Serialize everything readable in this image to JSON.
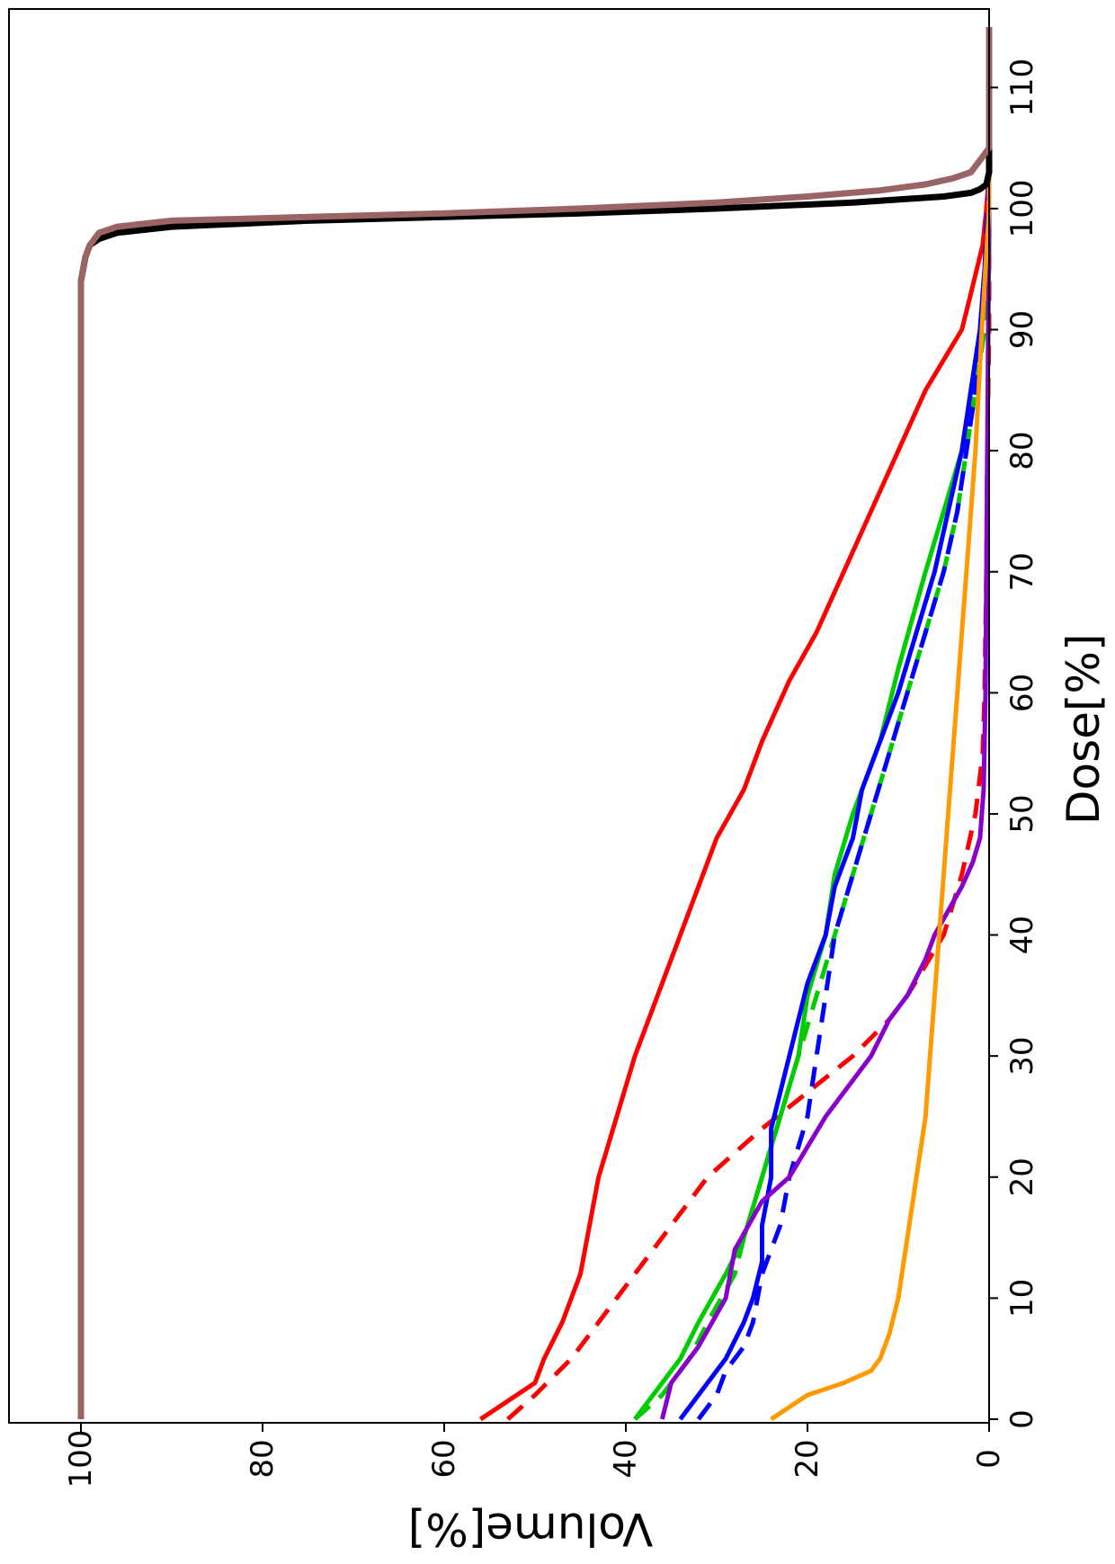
{
  "chart_data": {
    "type": "line",
    "orientation": "rotated-90-clockwise",
    "xlabel": "Dose[%]",
    "ylabel": "Volume[%]",
    "xlim": [
      0,
      115
    ],
    "ylim": [
      0,
      100
    ],
    "xticks": [
      0,
      10,
      20,
      30,
      40,
      50,
      60,
      70,
      80,
      90,
      100,
      110
    ],
    "yticks": [
      0,
      20,
      40,
      60,
      80,
      100
    ],
    "grid": false,
    "series": [
      {
        "color": "#ff0000",
        "dash": false,
        "x": [
          0,
          2,
          3,
          5,
          8,
          12,
          16,
          20,
          25,
          30,
          32,
          36,
          40,
          44,
          48,
          52,
          56,
          61,
          65,
          70,
          75,
          80,
          85,
          90,
          93,
          97,
          100,
          103,
          115
        ],
        "y": [
          56,
          52,
          50,
          49,
          47,
          45,
          44,
          43,
          41,
          39,
          38,
          36,
          34,
          32,
          30,
          27,
          25,
          22,
          19,
          16,
          13,
          10,
          7,
          3,
          2,
          0.7,
          0.3,
          0,
          0
        ]
      },
      {
        "color": "#ff0000",
        "dash": true,
        "x": [
          0,
          2,
          5,
          8,
          10,
          13,
          16,
          20,
          24,
          27,
          30,
          33,
          35,
          40,
          45,
          50,
          55,
          60,
          70,
          80,
          90,
          100,
          115
        ],
        "y": [
          53,
          50,
          46,
          43,
          41,
          38,
          35,
          31,
          25,
          20,
          15,
          11,
          9,
          5,
          3,
          1.5,
          0.7,
          0.5,
          0.3,
          0.2,
          0,
          0,
          0
        ]
      },
      {
        "color": "#00cc00",
        "dash": false,
        "x": [
          0,
          1,
          3,
          5,
          8,
          12,
          15,
          20,
          25,
          30,
          35,
          40,
          45,
          50,
          56,
          62,
          66,
          70,
          75,
          80,
          85,
          90,
          95,
          100,
          115
        ],
        "y": [
          39,
          38,
          36,
          34,
          32,
          29,
          27,
          25,
          23,
          21,
          20,
          18,
          17,
          15,
          12,
          10,
          8.5,
          7,
          5,
          3,
          2,
          1,
          0.3,
          0,
          0
        ]
      },
      {
        "color": "#00cc00",
        "dash": true,
        "x": [
          0,
          2,
          5,
          8,
          12,
          15,
          20,
          25,
          30,
          35,
          40,
          45,
          50,
          55,
          60,
          65,
          70,
          75,
          80,
          85,
          90,
          95,
          100,
          115
        ],
        "y": [
          39,
          36,
          33,
          31,
          28,
          27,
          25,
          23,
          21,
          19,
          17,
          15,
          13,
          11,
          9,
          7,
          5,
          3.5,
          2.5,
          1.5,
          0.5,
          0,
          0,
          0
        ]
      },
      {
        "color": "#0000ff",
        "dash": false,
        "x": [
          0,
          1,
          3,
          5,
          8,
          10,
          13,
          16,
          20,
          24,
          27,
          30,
          33,
          36,
          40,
          44,
          48,
          52,
          56,
          60,
          65,
          70,
          75,
          80,
          85,
          90,
          95,
          100,
          102,
          115
        ],
        "y": [
          34,
          33,
          31,
          29,
          27,
          26,
          25,
          25,
          24,
          24,
          23,
          22,
          21,
          20,
          18,
          17,
          15,
          14,
          12,
          10,
          8,
          6,
          4.5,
          3,
          2,
          1,
          0.5,
          0,
          0,
          0
        ]
      },
      {
        "color": "#0000ff",
        "dash": true,
        "x": [
          0,
          2,
          4,
          6,
          8,
          12,
          16,
          20,
          25,
          30,
          35,
          40,
          45,
          50,
          55,
          60,
          65,
          70,
          75,
          80,
          85,
          90,
          95,
          100,
          102,
          115
        ],
        "y": [
          32,
          30,
          29,
          27,
          26,
          25,
          23,
          22,
          20,
          19,
          18,
          17,
          15,
          13,
          11,
          9,
          7,
          5,
          3.5,
          2.5,
          1.5,
          1,
          0.5,
          0.2,
          0,
          0
        ]
      },
      {
        "color": "#8800cc",
        "dash": false,
        "x": [
          0,
          3,
          6,
          10,
          14,
          18,
          20,
          25,
          30,
          33,
          35,
          38,
          40,
          42,
          44,
          46,
          48,
          52,
          60,
          70,
          80,
          90,
          100,
          115
        ],
        "y": [
          36,
          35,
          32,
          29,
          28,
          25,
          22,
          18,
          13,
          11,
          9,
          7,
          6,
          4.5,
          3,
          1.8,
          1,
          0.6,
          0.4,
          0.3,
          0.2,
          0.1,
          0,
          0
        ]
      },
      {
        "color": "#ff9900",
        "dash": false,
        "x": [
          0,
          2,
          3,
          4,
          5,
          7,
          10,
          15,
          20,
          25,
          30,
          35,
          40,
          45,
          50,
          55,
          60,
          65,
          70,
          75,
          80,
          90,
          100,
          115
        ],
        "y": [
          24,
          20,
          16,
          13,
          12,
          11,
          10,
          9,
          8,
          7,
          6.5,
          6,
          5.5,
          5,
          4.5,
          4,
          3.5,
          3,
          2.5,
          2,
          1.5,
          0.8,
          0,
          0
        ]
      },
      {
        "color": "#000000",
        "dash": false,
        "x": [
          0,
          94,
          96,
          97,
          97.5,
          98,
          98.5,
          99,
          99.3,
          99.6,
          100,
          100.5,
          101,
          101.3,
          101.6,
          102,
          103,
          115
        ],
        "y": [
          100,
          100,
          99.5,
          99,
          98,
          96,
          90,
          75,
          60,
          45,
          30,
          15,
          5,
          2,
          1,
          0.3,
          0,
          0
        ]
      },
      {
        "color": "#9a6464",
        "dash": false,
        "x": [
          0,
          94,
          96,
          97,
          98,
          98.5,
          99,
          99.3,
          99.6,
          100,
          100.5,
          101,
          101.5,
          102,
          102.5,
          103,
          104,
          105,
          115
        ],
        "y": [
          100,
          100,
          99.5,
          99,
          98,
          96,
          90,
          75,
          60,
          45,
          30,
          20,
          12,
          7,
          4,
          2,
          1,
          0,
          0
        ]
      }
    ]
  }
}
